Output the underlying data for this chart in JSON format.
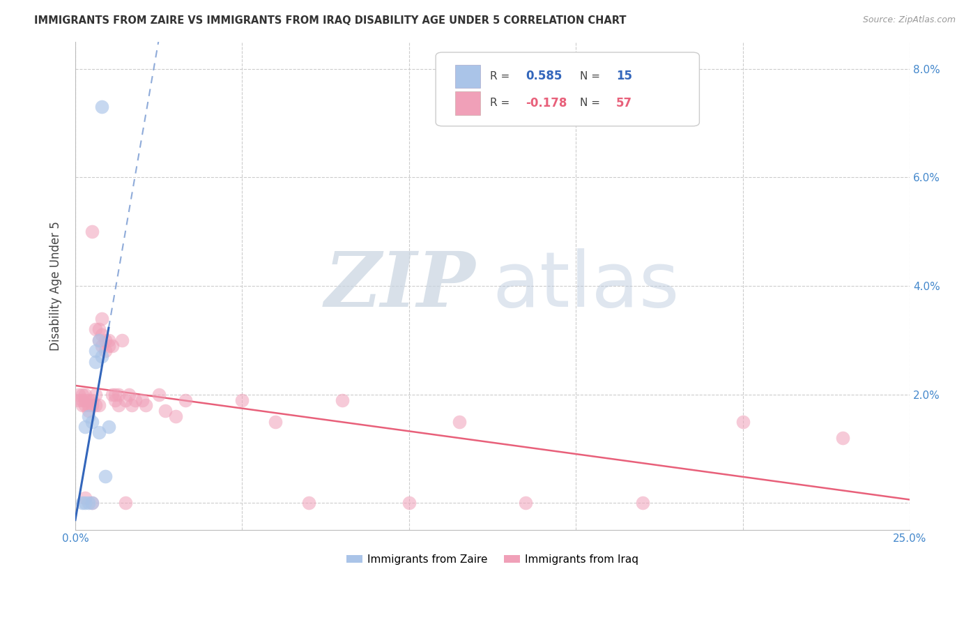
{
  "title": "IMMIGRANTS FROM ZAIRE VS IMMIGRANTS FROM IRAQ DISABILITY AGE UNDER 5 CORRELATION CHART",
  "source": "Source: ZipAtlas.com",
  "ylabel": "Disability Age Under 5",
  "xlim": [
    0.0,
    0.25
  ],
  "ylim": [
    -0.005,
    0.085
  ],
  "legend_zaire": "Immigrants from Zaire",
  "legend_iraq": "Immigrants from Iraq",
  "r_zaire": 0.585,
  "n_zaire": 15,
  "r_iraq": -0.178,
  "n_iraq": 57,
  "zaire_color": "#aac4e8",
  "iraq_color": "#f0a0b8",
  "zaire_line_color": "#3366bb",
  "iraq_line_color": "#e8607a",
  "watermark_zip": "ZIP",
  "watermark_atlas": "atlas",
  "background_color": "#ffffff",
  "zaire_points_x": [
    0.002,
    0.008,
    0.003,
    0.004,
    0.005,
    0.005,
    0.006,
    0.007,
    0.003,
    0.006,
    0.009,
    0.004,
    0.01,
    0.007,
    0.008
  ],
  "zaire_points_y": [
    0.0,
    0.073,
    0.0,
    0.0,
    0.0,
    0.015,
    0.028,
    0.03,
    0.014,
    0.026,
    0.005,
    0.016,
    0.014,
    0.013,
    0.027
  ],
  "iraq_points_x": [
    0.001,
    0.001,
    0.002,
    0.002,
    0.002,
    0.003,
    0.003,
    0.003,
    0.003,
    0.004,
    0.004,
    0.004,
    0.005,
    0.005,
    0.005,
    0.005,
    0.006,
    0.006,
    0.006,
    0.007,
    0.007,
    0.007,
    0.008,
    0.008,
    0.008,
    0.009,
    0.009,
    0.01,
    0.01,
    0.011,
    0.011,
    0.012,
    0.012,
    0.013,
    0.013,
    0.014,
    0.015,
    0.015,
    0.016,
    0.017,
    0.018,
    0.02,
    0.021,
    0.025,
    0.027,
    0.03,
    0.033,
    0.05,
    0.06,
    0.07,
    0.08,
    0.1,
    0.115,
    0.135,
    0.17,
    0.2,
    0.23
  ],
  "iraq_points_y": [
    0.02,
    0.019,
    0.018,
    0.019,
    0.02,
    0.018,
    0.019,
    0.02,
    0.001,
    0.018,
    0.017,
    0.019,
    0.05,
    0.018,
    0.0,
    0.019,
    0.018,
    0.032,
    0.02,
    0.032,
    0.03,
    0.018,
    0.034,
    0.029,
    0.031,
    0.028,
    0.03,
    0.03,
    0.029,
    0.029,
    0.02,
    0.019,
    0.02,
    0.02,
    0.018,
    0.03,
    0.019,
    0.0,
    0.02,
    0.018,
    0.019,
    0.019,
    0.018,
    0.02,
    0.017,
    0.016,
    0.019,
    0.019,
    0.015,
    0.0,
    0.019,
    0.0,
    0.015,
    0.0,
    0.0,
    0.015,
    0.012
  ]
}
